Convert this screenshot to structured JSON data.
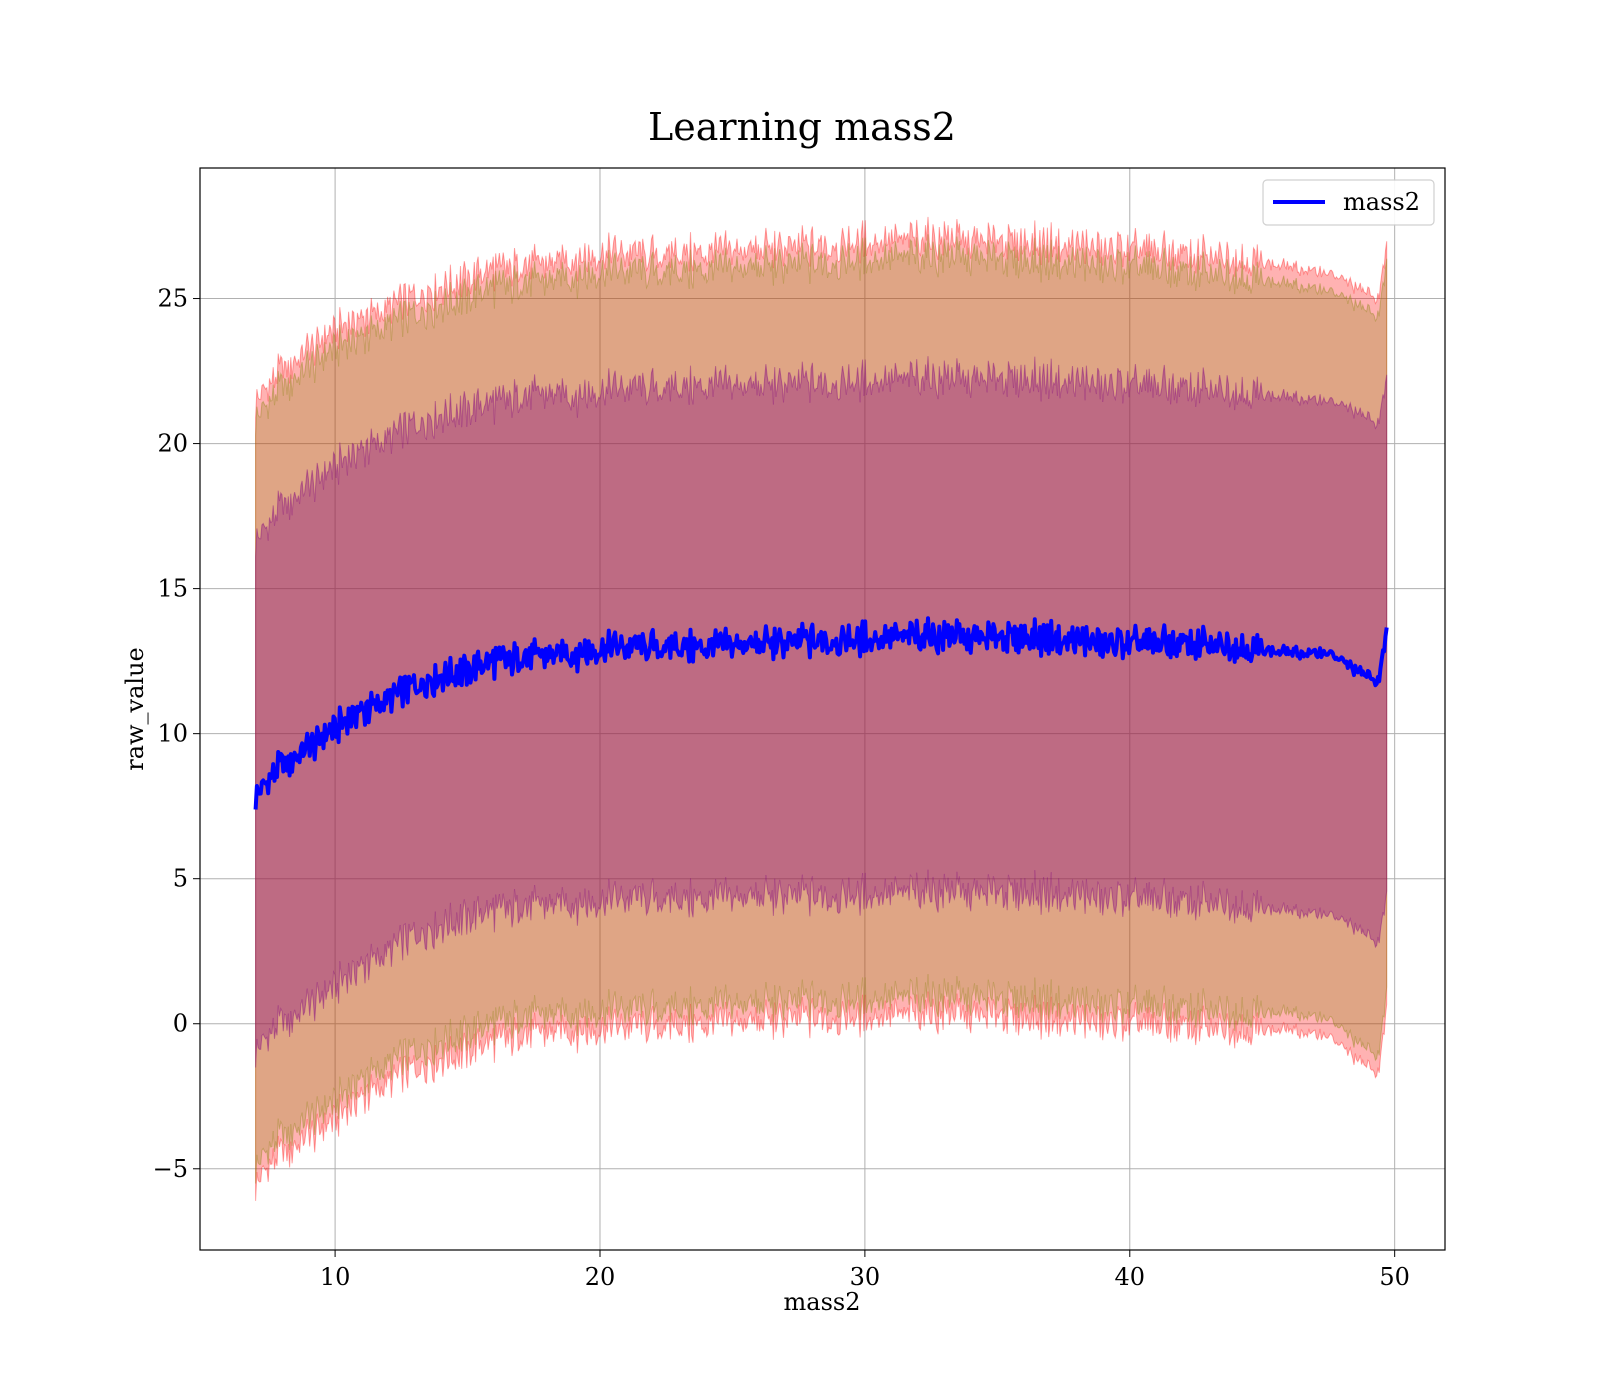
{
  "chart_data": {
    "type": "line",
    "title": "Learning mass2",
    "xlabel": "mass2",
    "ylabel": "raw_value",
    "xlim": [
      4.9,
      51.9
    ],
    "ylim": [
      -7.8,
      29.5
    ],
    "xticks": [
      10,
      20,
      30,
      40,
      50
    ],
    "yticks": [
      -5,
      0,
      5,
      10,
      15,
      20,
      25
    ],
    "xtick_labels": [
      "10",
      "20",
      "30",
      "40",
      "50"
    ],
    "ytick_labels": [
      "−5",
      "0",
      "5",
      "10",
      "15",
      "20",
      "25"
    ],
    "grid": true,
    "legend": {
      "position": "top-right",
      "entries": [
        "mass2"
      ]
    },
    "colors": {
      "line": "#0000ff",
      "outer_band": "#ff0000",
      "inner_band": "#800080",
      "grid": "#b0b0b0"
    },
    "x": [
      7.0,
      7.5,
      8.0,
      9.0,
      10.0,
      11.0,
      12.0,
      13.0,
      14.0,
      15.0,
      16.0,
      17.0,
      18.0,
      19.0,
      20.0,
      22.0,
      24.0,
      26.0,
      28.0,
      30.0,
      32.0,
      34.0,
      36.0,
      38.0,
      40.0,
      42.0,
      44.0,
      46.0,
      47.5,
      48.5,
      49.4,
      49.7
    ],
    "series": [
      {
        "name": "mass2",
        "values": [
          7.8,
          8.4,
          8.9,
          9.5,
          10.2,
          10.8,
          11.2,
          11.6,
          12.0,
          12.2,
          12.5,
          12.6,
          12.7,
          12.8,
          12.9,
          13.0,
          13.0,
          13.1,
          13.2,
          13.3,
          13.4,
          13.3,
          13.3,
          13.2,
          13.1,
          13.1,
          13.0,
          12.8,
          12.8,
          12.2,
          11.8,
          13.6
        ]
      }
    ],
    "bands": [
      {
        "lower": [
          -5.6,
          -4.9,
          -4.5,
          -3.9,
          -3.3,
          -2.5,
          -2.0,
          -1.6,
          -1.2,
          -0.9,
          -0.6,
          -0.4,
          -0.3,
          -0.2,
          -0.2,
          -0.1,
          0.0,
          0.1,
          0.2,
          0.3,
          0.4,
          0.3,
          0.2,
          0.1,
          0.0,
          -0.1,
          -0.2,
          -0.2,
          -0.4,
          -1.2,
          -1.7,
          0.6
        ],
        "upper": [
          21.4,
          22.0,
          22.5,
          23.2,
          23.9,
          24.3,
          24.7,
          25.0,
          25.4,
          25.7,
          26.0,
          26.1,
          26.2,
          26.4,
          26.5,
          26.5,
          26.6,
          26.7,
          26.8,
          27.0,
          27.1,
          27.0,
          26.9,
          26.8,
          26.7,
          26.5,
          26.4,
          26.1,
          25.9,
          25.4,
          25.0,
          26.9
        ]
      },
      {
        "lower": [
          -1.0,
          -0.4,
          0.0,
          0.6,
          1.3,
          2.0,
          2.5,
          3.0,
          3.4,
          3.7,
          3.9,
          4.0,
          4.1,
          4.2,
          4.2,
          4.3,
          4.3,
          4.4,
          4.4,
          4.5,
          4.6,
          4.5,
          4.5,
          4.4,
          4.3,
          4.2,
          4.1,
          3.9,
          3.8,
          3.3,
          2.8,
          4.5
        ],
        "upper": [
          16.6,
          17.2,
          17.8,
          18.5,
          19.2,
          19.8,
          20.2,
          20.6,
          21.0,
          21.2,
          21.4,
          21.6,
          21.7,
          21.7,
          21.8,
          21.9,
          22.0,
          22.0,
          22.1,
          22.2,
          22.3,
          22.2,
          22.2,
          22.1,
          22.0,
          21.9,
          21.8,
          21.6,
          21.5,
          21.1,
          20.7,
          22.3
        ]
      }
    ]
  }
}
